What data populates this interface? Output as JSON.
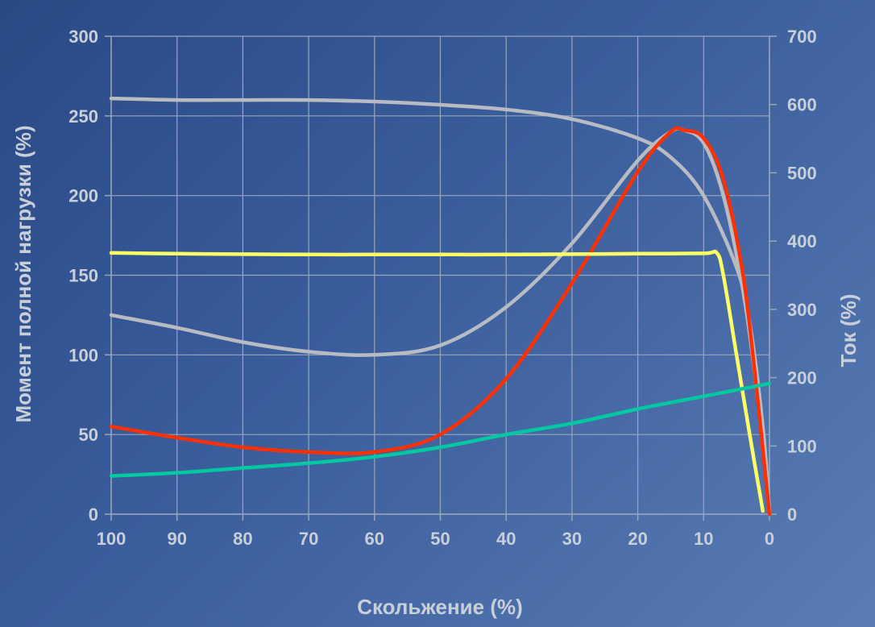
{
  "chart_data": {
    "type": "line",
    "title": "",
    "xlabel": "Скольжение (%)",
    "ylabel": "Момент полной нагрузки  (%)",
    "y2label": "Ток (%)",
    "xlim": [
      100,
      0
    ],
    "ylim": [
      0,
      300
    ],
    "y2lim": [
      0,
      700
    ],
    "x_ticks": [
      100,
      90,
      80,
      70,
      60,
      50,
      40,
      30,
      20,
      10,
      0
    ],
    "y_ticks": [
      0,
      50,
      100,
      150,
      200,
      250,
      300
    ],
    "y2_ticks": [
      0,
      100,
      200,
      300,
      400,
      500,
      600,
      700
    ],
    "grid": true,
    "series": [
      {
        "color": "#b8bcc2",
        "axis": "left",
        "points": [
          [
            100,
            261
          ],
          [
            90,
            260
          ],
          [
            80,
            260
          ],
          [
            70,
            260
          ],
          [
            60,
            259
          ],
          [
            50,
            257
          ],
          [
            40,
            254
          ],
          [
            30,
            248
          ],
          [
            20,
            236
          ],
          [
            15,
            224
          ],
          [
            10,
            200
          ],
          [
            5,
            155
          ],
          [
            3,
            120
          ],
          [
            1,
            55
          ],
          [
            0,
            2
          ]
        ]
      },
      {
        "color": "#b8bcc2",
        "axis": "left",
        "points": [
          [
            100,
            125
          ],
          [
            90,
            117
          ],
          [
            80,
            108
          ],
          [
            70,
            102
          ],
          [
            60,
            100
          ],
          [
            50,
            106
          ],
          [
            40,
            130
          ],
          [
            30,
            170
          ],
          [
            20,
            222
          ],
          [
            15,
            240
          ],
          [
            13,
            241
          ],
          [
            10,
            233
          ],
          [
            7,
            200
          ],
          [
            4,
            140
          ],
          [
            2,
            80
          ],
          [
            0,
            2
          ]
        ]
      },
      {
        "color": "#ff3000",
        "axis": "left",
        "points": [
          [
            100,
            55
          ],
          [
            90,
            48
          ],
          [
            80,
            42
          ],
          [
            70,
            39
          ],
          [
            60,
            39
          ],
          [
            50,
            50
          ],
          [
            40,
            85
          ],
          [
            30,
            145
          ],
          [
            20,
            215
          ],
          [
            15,
            240
          ],
          [
            13,
            241
          ],
          [
            10,
            236
          ],
          [
            7,
            210
          ],
          [
            4,
            150
          ],
          [
            2,
            80
          ],
          [
            0,
            0
          ]
        ]
      },
      {
        "color": "#ffff66",
        "axis": "left",
        "points": [
          [
            100,
            164
          ],
          [
            90,
            163.5
          ],
          [
            80,
            163.2
          ],
          [
            70,
            163
          ],
          [
            60,
            163
          ],
          [
            50,
            163
          ],
          [
            40,
            163
          ],
          [
            30,
            163.2
          ],
          [
            20,
            163.5
          ],
          [
            10,
            163.7
          ],
          [
            8,
            164
          ],
          [
            7,
            150
          ],
          [
            5,
            100
          ],
          [
            3,
            50
          ],
          [
            1,
            2
          ]
        ]
      },
      {
        "color": "#00c8a0",
        "axis": "left",
        "points": [
          [
            100,
            24
          ],
          [
            90,
            26
          ],
          [
            80,
            29
          ],
          [
            70,
            32
          ],
          [
            60,
            36
          ],
          [
            50,
            42
          ],
          [
            40,
            50
          ],
          [
            30,
            57
          ],
          [
            20,
            66
          ],
          [
            10,
            74
          ],
          [
            5,
            78
          ],
          [
            0,
            82
          ]
        ]
      }
    ]
  }
}
